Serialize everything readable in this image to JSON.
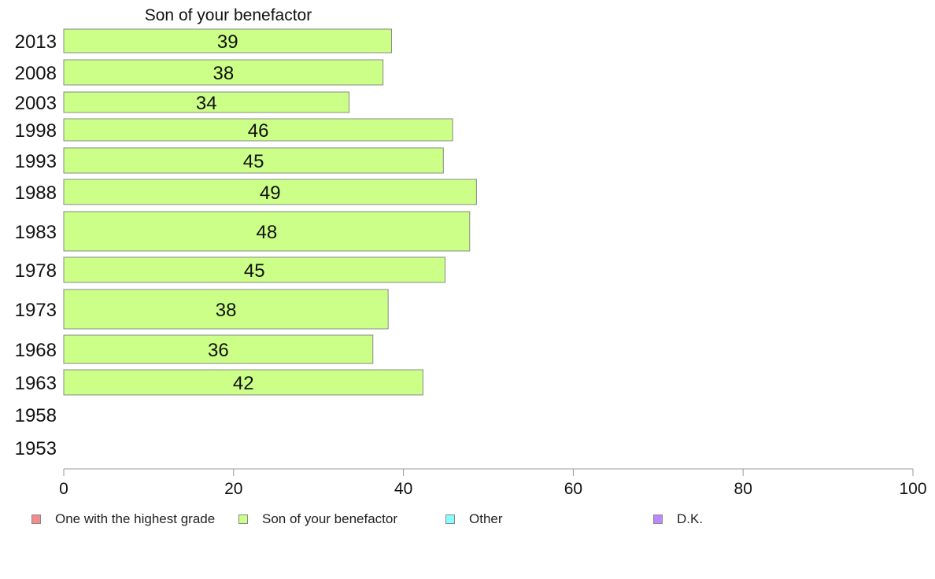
{
  "chart_data": {
    "type": "bar",
    "orientation": "horizontal",
    "title": "Son of your benefactor",
    "categories": [
      "2013",
      "2008",
      "2003",
      "1998",
      "1993",
      "1988",
      "1983",
      "1978",
      "1973",
      "1968",
      "1963",
      "1958",
      "1953"
    ],
    "series": [
      {
        "name": "Son of your benefactor",
        "color": "#ccff88",
        "values": [
          38.6,
          37.6,
          33.6,
          45.8,
          44.7,
          48.6,
          47.8,
          44.9,
          38.2,
          36.4,
          42.3,
          null,
          null
        ],
        "labels": [
          "39",
          "38",
          "34",
          "46",
          "45",
          "49",
          "48",
          "45",
          "38",
          "36",
          "42",
          "",
          ""
        ]
      }
    ],
    "xlim": [
      0,
      100
    ],
    "xticks": [
      "0",
      "20",
      "40",
      "60",
      "80",
      "100"
    ],
    "grid": false,
    "legend": {
      "placement": "bottom",
      "items": [
        {
          "label": "One with the highest grade",
          "color": "#f48c8c"
        },
        {
          "label": "Son of your benefactor",
          "color": "#ccff88"
        },
        {
          "label": "Other",
          "color": "#88ffff"
        },
        {
          "label": "D.K.",
          "color": "#bb88ff"
        }
      ]
    }
  }
}
